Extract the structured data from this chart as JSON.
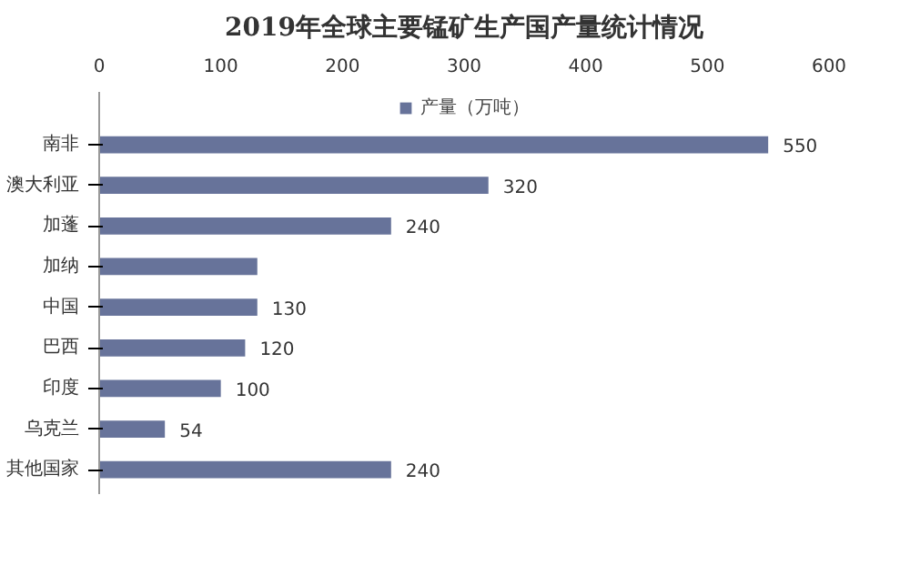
{
  "chart_data": {
    "type": "bar",
    "orientation": "horizontal",
    "title": "2019年全球主要锰矿生产国产量统计情况",
    "categories": [
      "南非",
      "澳大利亚",
      "加蓬",
      "加纳",
      "中国",
      "巴西",
      "印度",
      "乌克兰",
      "其他国家"
    ],
    "series": [
      {
        "name": "产量（万吨）",
        "color": "#67739a",
        "values": [
          550,
          320,
          240,
          130,
          130,
          120,
          100,
          54,
          240
        ]
      }
    ],
    "value_labels": [
      "550",
      "320",
      "240",
      null,
      "130",
      "120",
      "100",
      "54",
      "240"
    ],
    "xlim": [
      0,
      600
    ],
    "xticks": [
      0,
      100,
      200,
      300,
      400,
      500,
      600
    ],
    "grid": false,
    "legend": "top"
  }
}
